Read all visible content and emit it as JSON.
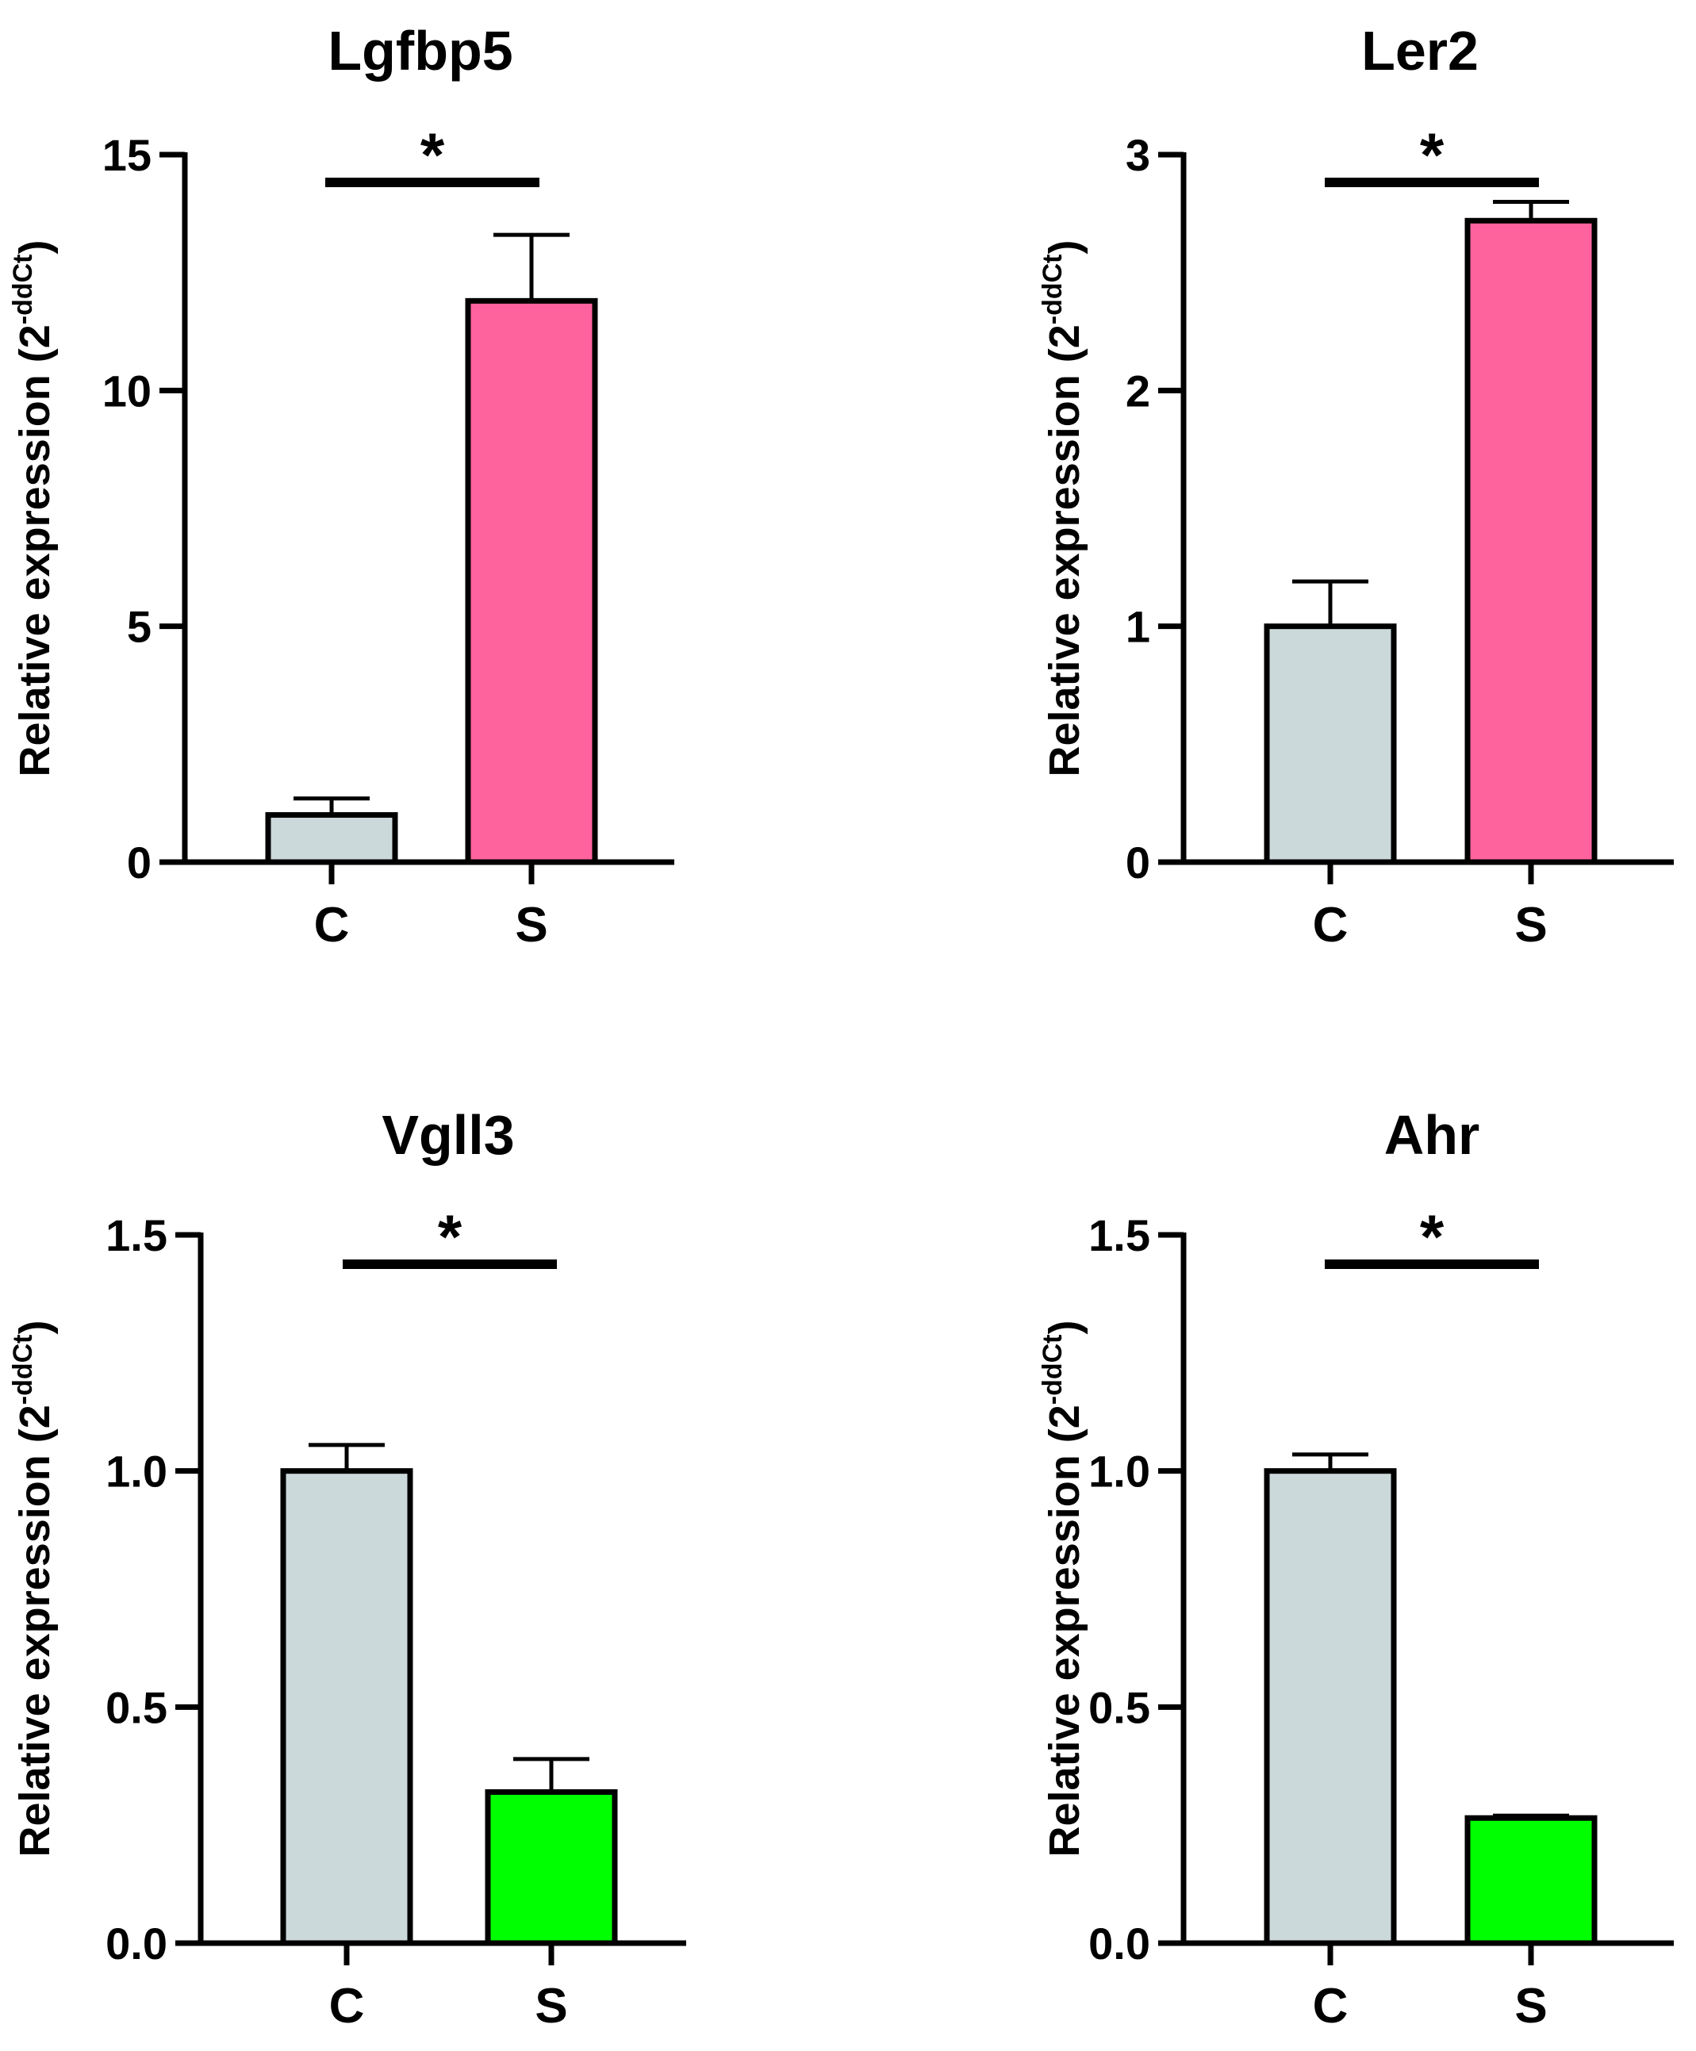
{
  "chart_data": [
    {
      "type": "bar",
      "title": "Lgfbp5",
      "categories": [
        "C",
        "S"
      ],
      "values": [
        1.0,
        11.9
      ],
      "errors": [
        0.35,
        1.4
      ],
      "colors": [
        "#ccd9db",
        "#ff639e"
      ],
      "ylabel_main": "Relative expression (2",
      "ylabel_sup": "-ddCt",
      "ylabel_close": ")",
      "ylim": [
        0,
        15
      ],
      "yticks": [
        "0",
        "5",
        "10",
        "15"
      ],
      "ytick_values": [
        0,
        5,
        10,
        15
      ],
      "significance": "*"
    },
    {
      "type": "bar",
      "title": "Ler2",
      "categories": [
        "C",
        "S"
      ],
      "values": [
        1.0,
        2.72
      ],
      "errors": [
        0.19,
        0.08
      ],
      "colors": [
        "#ccd9db",
        "#ff639e"
      ],
      "ylabel_main": "Relative expression (2",
      "ylabel_sup": "-ddCt",
      "ylabel_close": ")",
      "ylim": [
        0,
        3
      ],
      "yticks": [
        "0",
        "1",
        "2",
        "3"
      ],
      "ytick_values": [
        0,
        1,
        2,
        3
      ],
      "significance": "*"
    },
    {
      "type": "bar",
      "title": "Vgll3",
      "categories": [
        "C",
        "S"
      ],
      "values": [
        1.0,
        0.32
      ],
      "errors": [
        0.055,
        0.07
      ],
      "colors": [
        "#ccd9db",
        "#00ff00"
      ],
      "ylabel_main": "Relative expression (2",
      "ylabel_sup": "-ddCt",
      "ylabel_close": ")",
      "ylim": [
        0,
        1.5
      ],
      "yticks": [
        "0.0",
        "0.5",
        "1.0",
        "1.5"
      ],
      "ytick_values": [
        0,
        0.5,
        1.0,
        1.5
      ],
      "significance": "*"
    },
    {
      "type": "bar",
      "title": "Ahr",
      "categories": [
        "C",
        "S"
      ],
      "values": [
        1.0,
        0.265
      ],
      "errors": [
        0.035,
        0.005
      ],
      "colors": [
        "#ccd9db",
        "#00ff00"
      ],
      "ylabel_main": "Relative expression (2",
      "ylabel_sup": "-ddCt",
      "ylabel_close": ")",
      "ylim": [
        0,
        1.5
      ],
      "yticks": [
        "0.0",
        "0.5",
        "1.0",
        "1.5"
      ],
      "ytick_values": [
        0,
        0.5,
        1.0,
        1.5
      ],
      "significance": "*"
    }
  ]
}
